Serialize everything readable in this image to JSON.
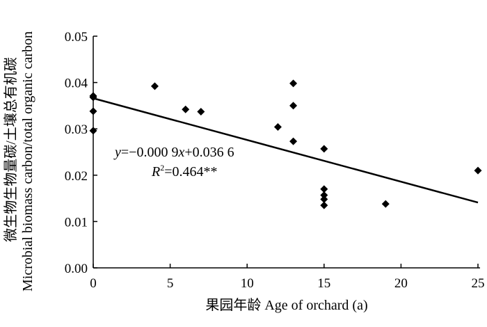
{
  "chart_data": {
    "type": "scatter",
    "title": "",
    "xlabel": "果园年龄 Age of orchard (a)",
    "ylabel_line1": "微生物生物量碳/土壤总有机碳",
    "ylabel_line2": "Microbial biomass carbon/total organic carbon",
    "xlim": [
      0,
      25
    ],
    "ylim": [
      0,
      0.05
    ],
    "x_ticks": [
      "0",
      "5",
      "10",
      "15",
      "20",
      "25"
    ],
    "y_ticks": [
      "0.00",
      "0.01",
      "0.02",
      "0.03",
      "0.04",
      "0.05"
    ],
    "grid": false,
    "legend": false,
    "points": [
      {
        "x": 0,
        "y": 0.0371
      },
      {
        "x": 0,
        "y": 0.0368
      },
      {
        "x": 0,
        "y": 0.0338
      },
      {
        "x": 0,
        "y": 0.0296
      },
      {
        "x": 4,
        "y": 0.0392
      },
      {
        "x": 6,
        "y": 0.0342
      },
      {
        "x": 7,
        "y": 0.0337
      },
      {
        "x": 12,
        "y": 0.0304
      },
      {
        "x": 13,
        "y": 0.0398
      },
      {
        "x": 13,
        "y": 0.035
      },
      {
        "x": 13,
        "y": 0.0273
      },
      {
        "x": 15,
        "y": 0.0257
      },
      {
        "x": 15,
        "y": 0.017
      },
      {
        "x": 15,
        "y": 0.0157
      },
      {
        "x": 15,
        "y": 0.0148
      },
      {
        "x": 15,
        "y": 0.0135
      },
      {
        "x": 19,
        "y": 0.0138
      },
      {
        "x": 25,
        "y": 0.021
      }
    ],
    "trendline": {
      "slope": -0.0009,
      "intercept": 0.0366,
      "x_range": [
        0,
        25
      ]
    },
    "equation_prefix": "y",
    "equation_body": "=−0.000 9",
    "equation_x": "x",
    "equation_tail": "+0.036 6",
    "r2_label": "R",
    "r2_exp": "2",
    "r2_value": "=0.464**",
    "marker_color": "#000000",
    "line_color": "#000000"
  }
}
